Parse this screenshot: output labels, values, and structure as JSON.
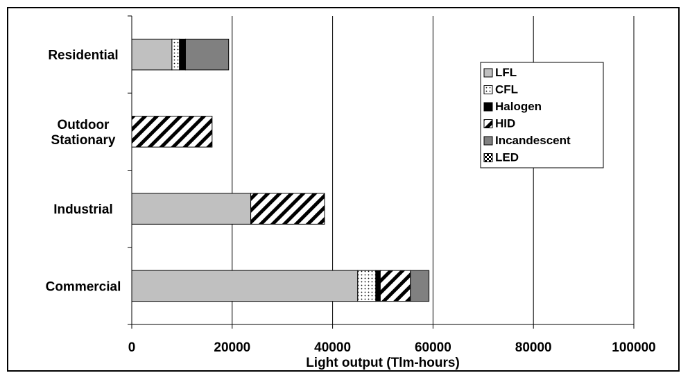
{
  "chart_data": {
    "type": "bar",
    "orientation": "horizontal",
    "stacked": true,
    "categories": [
      "Residential",
      "Outdoor Stationary",
      "Industrial",
      "Commercial"
    ],
    "category_display": [
      [
        "Residential"
      ],
      [
        "Outdoor",
        "Stationary"
      ],
      [
        "Industrial"
      ],
      [
        "Commercial"
      ]
    ],
    "series": [
      {
        "name": "LFL",
        "values": [
          8000,
          0,
          23700,
          45000
        ],
        "pattern": "solid-gray",
        "color": "#c0c0c0"
      },
      {
        "name": "CFL",
        "values": [
          1500,
          0,
          0,
          3600
        ],
        "pattern": "dots",
        "color": "#ffffff"
      },
      {
        "name": "Halogen",
        "values": [
          1200,
          0,
          0,
          900
        ],
        "pattern": "solid-black",
        "color": "#000000"
      },
      {
        "name": "HID",
        "values": [
          0,
          16000,
          14700,
          6000
        ],
        "pattern": "diagonal-hatch",
        "color": "#ffffff"
      },
      {
        "name": "Incandescent",
        "values": [
          8600,
          0,
          0,
          3700
        ],
        "pattern": "solid-dark-gray",
        "color": "#808080"
      },
      {
        "name": "LED",
        "values": [
          0,
          0,
          0,
          0
        ],
        "pattern": "checker",
        "color": "#ffffff"
      }
    ],
    "xlabel": "Light output (Tlm-hours)",
    "ylabel": "",
    "xlim": [
      0,
      100000
    ],
    "xticks": [
      0,
      20000,
      40000,
      60000,
      80000,
      100000
    ],
    "xtick_labels": [
      "0",
      "20000",
      "40000",
      "60000",
      "80000",
      "100000"
    ],
    "grid": "vertical",
    "legend_position": "upper-right"
  }
}
